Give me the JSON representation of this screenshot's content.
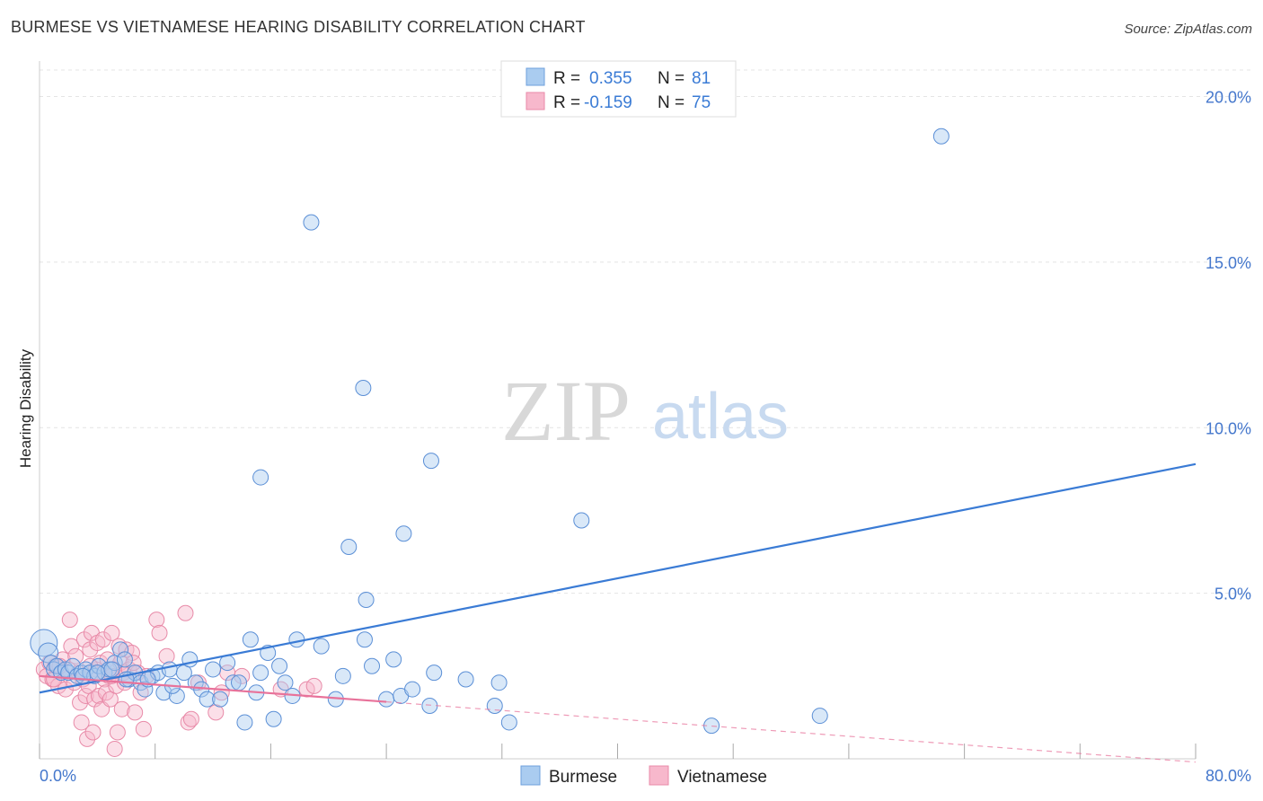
{
  "title": "BURMESE VS VIETNAMESE HEARING DISABILITY CORRELATION CHART",
  "source": "Source: ZipAtlas.com",
  "watermark": {
    "zip": "ZIP",
    "atlas": "atlas"
  },
  "legend_top": {
    "rows": [
      {
        "r_label": "R =",
        "r_value": "0.355",
        "n_label": "N =",
        "n_value": "81",
        "color": "#aaccf0"
      },
      {
        "r_label": "R =",
        "r_value": "-0.159",
        "n_label": "N =",
        "n_value": "75",
        "color": "#f7b8cc"
      }
    ]
  },
  "legend_bottom": [
    {
      "label": "Burmese",
      "color": "#aaccf0"
    },
    {
      "label": "Vietnamese",
      "color": "#f7b8cc"
    }
  ],
  "chart_data": {
    "type": "scatter",
    "title": "BURMESE VS VIETNAMESE HEARING DISABILITY CORRELATION CHART",
    "xlabel": "",
    "ylabel": "Hearing Disability",
    "xlim": [
      0,
      80
    ],
    "ylim": [
      0,
      20.8
    ],
    "x_tick_labels": [
      "0.0%",
      "80.0%"
    ],
    "y_ticks": [
      5,
      10,
      15,
      20
    ],
    "y_tick_labels": [
      "5.0%",
      "10.0%",
      "15.0%",
      "20.0%"
    ],
    "grid": true,
    "colors": {
      "burmese": "#3a7bd5",
      "vietnamese": "#e8729a"
    },
    "series": [
      {
        "name": "Burmese",
        "regression": {
          "x": [
            0,
            80
          ],
          "y": [
            2.0,
            8.9
          ]
        },
        "points": [
          [
            0.3,
            3.5
          ],
          [
            0.6,
            3.2
          ],
          [
            0.8,
            2.9
          ],
          [
            1.0,
            2.7
          ],
          [
            1.2,
            2.8
          ],
          [
            1.5,
            2.6
          ],
          [
            1.8,
            2.7
          ],
          [
            2.0,
            2.6
          ],
          [
            2.3,
            2.8
          ],
          [
            2.6,
            2.5
          ],
          [
            2.9,
            2.6
          ],
          [
            3.2,
            2.7
          ],
          [
            3.5,
            2.6
          ],
          [
            3.8,
            2.5
          ],
          [
            4.1,
            2.8
          ],
          [
            4.5,
            2.6
          ],
          [
            4.8,
            2.7
          ],
          [
            5.2,
            2.9
          ],
          [
            5.6,
            3.3
          ],
          [
            5.9,
            3.0
          ],
          [
            6.2,
            2.4
          ],
          [
            6.6,
            2.6
          ],
          [
            7.0,
            2.3
          ],
          [
            7.3,
            2.1
          ],
          [
            7.8,
            2.5
          ],
          [
            8.2,
            2.6
          ],
          [
            8.6,
            2.0
          ],
          [
            9.0,
            2.7
          ],
          [
            9.5,
            1.9
          ],
          [
            10.0,
            2.6
          ],
          [
            10.4,
            3.0
          ],
          [
            10.8,
            2.3
          ],
          [
            11.2,
            2.1
          ],
          [
            11.6,
            1.8
          ],
          [
            12.0,
            2.7
          ],
          [
            12.5,
            1.8
          ],
          [
            13.0,
            2.9
          ],
          [
            13.4,
            2.3
          ],
          [
            13.8,
            2.3
          ],
          [
            14.2,
            1.1
          ],
          [
            14.6,
            3.6
          ],
          [
            15.0,
            2.0
          ],
          [
            15.3,
            2.6
          ],
          [
            15.8,
            3.2
          ],
          [
            16.2,
            1.2
          ],
          [
            16.6,
            2.8
          ],
          [
            17.0,
            2.3
          ],
          [
            17.5,
            1.9
          ],
          [
            17.8,
            3.6
          ],
          [
            19.5,
            3.4
          ],
          [
            20.5,
            1.8
          ],
          [
            21.0,
            2.5
          ],
          [
            22.5,
            3.6
          ],
          [
            23.0,
            2.8
          ],
          [
            24.5,
            3.0
          ],
          [
            24.0,
            1.8
          ],
          [
            25.0,
            1.9
          ],
          [
            25.8,
            2.1
          ],
          [
            27.0,
            1.6
          ],
          [
            27.3,
            2.6
          ],
          [
            29.5,
            2.4
          ],
          [
            31.5,
            1.6
          ],
          [
            31.8,
            2.3
          ],
          [
            32.5,
            1.1
          ],
          [
            37.5,
            7.2
          ],
          [
            46.5,
            1.0
          ],
          [
            54.0,
            1.3
          ],
          [
            15.3,
            8.5
          ],
          [
            18.8,
            16.2
          ],
          [
            21.4,
            6.4
          ],
          [
            22.4,
            11.2
          ],
          [
            22.6,
            4.8
          ],
          [
            25.2,
            6.8
          ],
          [
            27.1,
            9.0
          ],
          [
            62.4,
            18.8
          ],
          [
            3.0,
            2.5
          ],
          [
            4.0,
            2.6
          ],
          [
            5.0,
            2.7
          ],
          [
            6.0,
            2.4
          ],
          [
            9.2,
            2.2
          ],
          [
            7.5,
            2.4
          ]
        ]
      },
      {
        "name": "Vietnamese",
        "regression": {
          "x": [
            0,
            80
          ],
          "y": [
            2.5,
            -0.1
          ],
          "solid_to_x": 24
        },
        "points": [
          [
            0.3,
            2.7
          ],
          [
            0.5,
            2.5
          ],
          [
            0.7,
            2.9
          ],
          [
            0.9,
            2.4
          ],
          [
            1.1,
            2.8
          ],
          [
            1.3,
            2.2
          ],
          [
            1.5,
            2.6
          ],
          [
            1.6,
            3.0
          ],
          [
            1.8,
            2.1
          ],
          [
            2.0,
            2.7
          ],
          [
            2.1,
            4.2
          ],
          [
            2.2,
            3.4
          ],
          [
            2.4,
            2.3
          ],
          [
            2.5,
            3.1
          ],
          [
            2.7,
            2.6
          ],
          [
            2.8,
            1.7
          ],
          [
            3.0,
            2.4
          ],
          [
            3.1,
            3.6
          ],
          [
            3.2,
            1.9
          ],
          [
            3.3,
            0.6
          ],
          [
            3.4,
            2.2
          ],
          [
            3.5,
            3.3
          ],
          [
            3.6,
            3.8
          ],
          [
            3.7,
            0.8
          ],
          [
            3.8,
            1.8
          ],
          [
            3.9,
            2.7
          ],
          [
            4.0,
            3.5
          ],
          [
            4.1,
            1.9
          ],
          [
            4.2,
            2.9
          ],
          [
            4.3,
            1.5
          ],
          [
            4.4,
            3.6
          ],
          [
            4.5,
            2.4
          ],
          [
            4.6,
            2.0
          ],
          [
            4.7,
            3.0
          ],
          [
            4.8,
            2.5
          ],
          [
            4.9,
            1.8
          ],
          [
            5.0,
            3.8
          ],
          [
            5.1,
            2.7
          ],
          [
            5.2,
            0.3
          ],
          [
            5.3,
            2.2
          ],
          [
            5.4,
            0.8
          ],
          [
            5.5,
            3.4
          ],
          [
            5.6,
            2.9
          ],
          [
            5.7,
            1.5
          ],
          [
            5.8,
            2.6
          ],
          [
            5.9,
            2.3
          ],
          [
            6.0,
            3.3
          ],
          [
            6.2,
            2.7
          ],
          [
            6.4,
            3.2
          ],
          [
            6.6,
            1.4
          ],
          [
            6.8,
            2.6
          ],
          [
            7.0,
            2.0
          ],
          [
            7.2,
            0.9
          ],
          [
            7.4,
            2.5
          ],
          [
            8.1,
            4.2
          ],
          [
            8.3,
            3.8
          ],
          [
            8.8,
            3.1
          ],
          [
            10.1,
            4.4
          ],
          [
            10.3,
            1.1
          ],
          [
            10.5,
            1.2
          ],
          [
            11.0,
            2.3
          ],
          [
            12.2,
            1.4
          ],
          [
            12.6,
            2.0
          ],
          [
            13.0,
            2.6
          ],
          [
            14.0,
            2.5
          ],
          [
            16.7,
            2.1
          ],
          [
            18.5,
            2.1
          ],
          [
            19.0,
            2.2
          ],
          [
            1.0,
            2.4
          ],
          [
            1.4,
            2.8
          ],
          [
            2.9,
            1.1
          ],
          [
            3.5,
            2.8
          ],
          [
            4.0,
            2.6
          ],
          [
            5.0,
            2.5
          ],
          [
            6.5,
            2.9
          ]
        ]
      }
    ]
  }
}
